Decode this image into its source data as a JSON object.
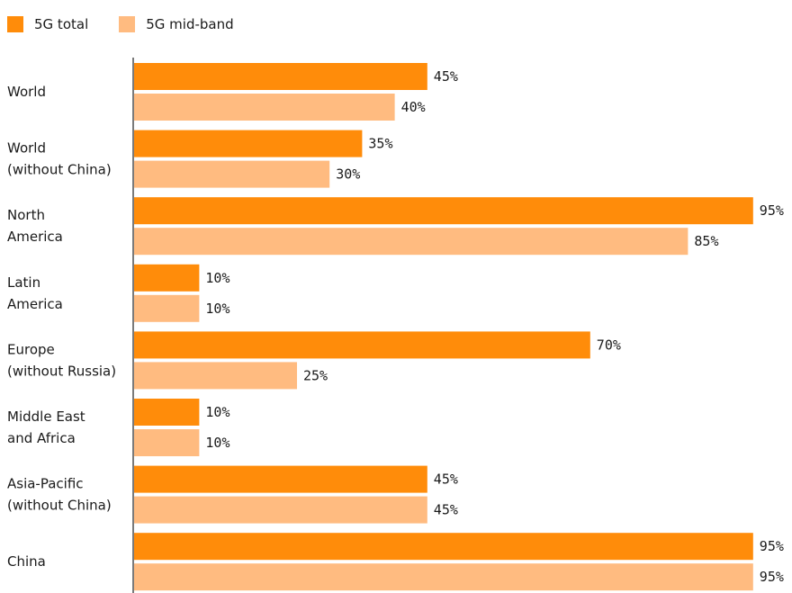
{
  "chart_data": {
    "type": "bar",
    "orientation": "horizontal",
    "title": "",
    "xlabel": "",
    "ylabel": "",
    "xlim": [
      0,
      95
    ],
    "grid": false,
    "legend_position": "top-left",
    "value_suffix": "%",
    "categories": [
      "World",
      "World\n(without China)",
      "North\nAmerica",
      "Latin\nAmerica",
      "Europe\n(without Russia)",
      "Middle East\nand Africa",
      "Asia-Pacific\n(without China)",
      "China"
    ],
    "series": [
      {
        "name": "5G total",
        "color": "#ff8c0a",
        "values": [
          45,
          35,
          95,
          10,
          70,
          10,
          45,
          95
        ]
      },
      {
        "name": "5G mid-band",
        "color": "#ffbb80",
        "values": [
          40,
          30,
          85,
          10,
          25,
          10,
          45,
          95
        ]
      }
    ]
  }
}
